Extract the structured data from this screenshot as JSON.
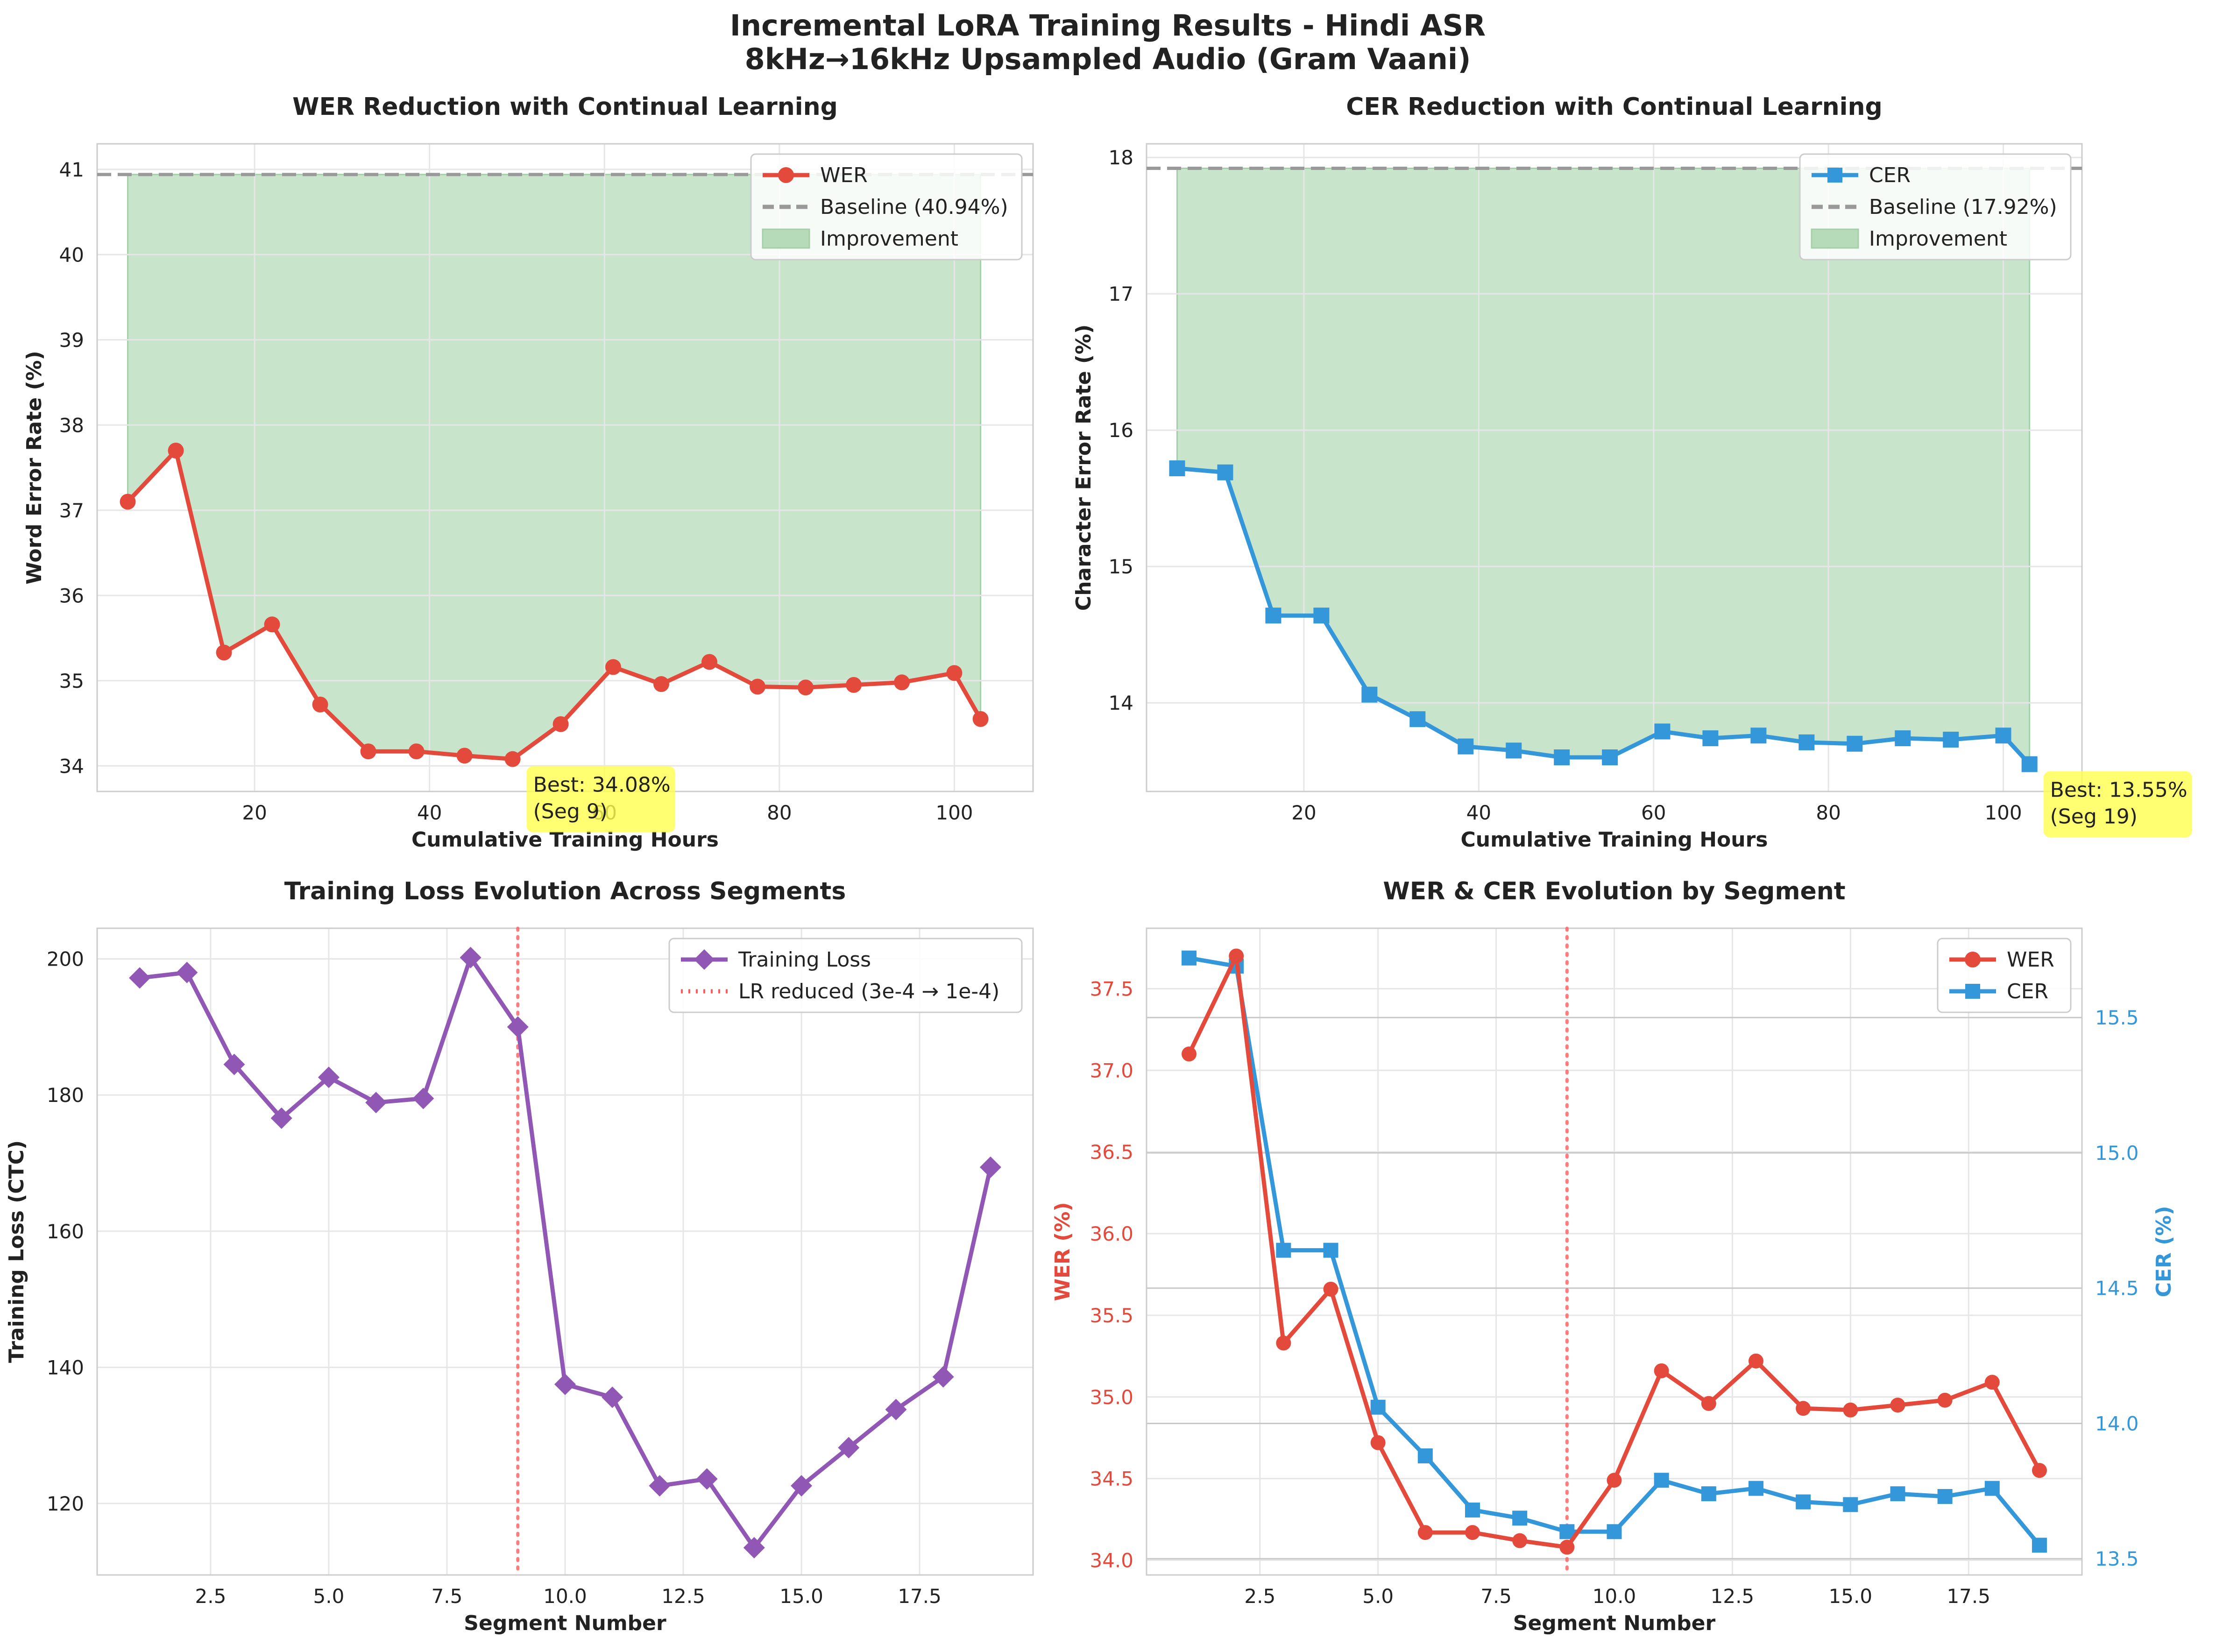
{
  "suptitle": {
    "line1": "Incremental LoRA Training Results - Hindi ASR",
    "line2": "8kHz→16kHz Upsampled Audio (Gram Vaani)"
  },
  "colors": {
    "wer": "#e34a3b",
    "cer": "#3497da",
    "loss": "#9157b5",
    "baseline": "#999999",
    "improvement": "#b5dbb8",
    "lr_line": "#ff5c5c",
    "annotation": "#ffff4d"
  },
  "chart_data": [
    {
      "id": "wer",
      "type": "line",
      "title": "WER Reduction with Continual Learning",
      "xlabel": "Cumulative Training Hours",
      "ylabel": "Word Error Rate (%)",
      "xlim": [
        2,
        109
      ],
      "ylim": [
        33.7,
        41.3
      ],
      "xticks": [
        20,
        40,
        60,
        80,
        100
      ],
      "yticks": [
        34,
        35,
        36,
        37,
        38,
        39,
        40,
        41
      ],
      "x": [
        5.5,
        11,
        16.5,
        22,
        27.5,
        33,
        38.5,
        44,
        49.5,
        55,
        61,
        66.5,
        72,
        77.5,
        83,
        88.5,
        94,
        100,
        103
      ],
      "series": [
        {
          "name": "WER",
          "values": [
            37.1,
            37.7,
            35.33,
            35.66,
            34.72,
            34.17,
            34.17,
            34.12,
            34.08,
            34.49,
            35.16,
            34.96,
            35.22,
            34.93,
            34.92,
            34.95,
            34.98,
            35.09,
            34.55
          ]
        }
      ],
      "baseline": {
        "label": "Baseline (40.94%)",
        "value": 40.94
      },
      "improvement_label": "Improvement",
      "annotation": {
        "line1": "Best: 34.08%",
        "line2": "(Seg 9)",
        "x": 49.5,
        "y": 34.08
      },
      "legend": "top-right"
    },
    {
      "id": "cer",
      "type": "line",
      "title": "CER Reduction with Continual Learning",
      "xlabel": "Cumulative Training Hours",
      "ylabel": "Character Error Rate (%)",
      "xlim": [
        2,
        109
      ],
      "ylim": [
        13.35,
        18.1
      ],
      "xticks": [
        20,
        40,
        60,
        80,
        100
      ],
      "yticks": [
        14,
        15,
        16,
        17,
        18
      ],
      "x": [
        5.5,
        11,
        16.5,
        22,
        27.5,
        33,
        38.5,
        44,
        49.5,
        55,
        61,
        66.5,
        72,
        77.5,
        83,
        88.5,
        94,
        100,
        103
      ],
      "series": [
        {
          "name": "CER",
          "values": [
            15.72,
            15.69,
            14.64,
            14.64,
            14.06,
            13.88,
            13.68,
            13.65,
            13.6,
            13.6,
            13.79,
            13.74,
            13.76,
            13.71,
            13.7,
            13.74,
            13.73,
            13.76,
            13.55
          ]
        }
      ],
      "baseline": {
        "label": "Baseline (17.92%)",
        "value": 17.92
      },
      "improvement_label": "Improvement",
      "annotation": {
        "line1": "Best: 13.55%",
        "line2": "(Seg 19)",
        "x": 103,
        "y": 13.55
      },
      "legend": "top-right"
    },
    {
      "id": "loss",
      "type": "line",
      "title": "Training Loss Evolution Across Segments",
      "xlabel": "Segment Number",
      "ylabel": "Training Loss (CTC)",
      "xlim": [
        0.1,
        19.9
      ],
      "ylim": [
        109.5,
        204.5
      ],
      "xticks": [
        2.5,
        5.0,
        7.5,
        10.0,
        12.5,
        15.0,
        17.5
      ],
      "xtick_labels": [
        "2.5",
        "5.0",
        "7.5",
        "10.0",
        "12.5",
        "15.0",
        "17.5"
      ],
      "yticks": [
        120,
        140,
        160,
        180,
        200
      ],
      "x": [
        1,
        2,
        3,
        4,
        5,
        6,
        7,
        8,
        9,
        10,
        11,
        12,
        13,
        14,
        15,
        16,
        17,
        18,
        19
      ],
      "series": [
        {
          "name": "Training Loss",
          "values": [
            197.2,
            198.0,
            184.5,
            176.6,
            182.6,
            178.9,
            179.5,
            200.2,
            190.0,
            137.5,
            135.6,
            122.6,
            123.6,
            113.5,
            122.6,
            128.2,
            133.8,
            138.6,
            169.4
          ]
        }
      ],
      "vline": {
        "x": 9,
        "label": "LR reduced (3e-4 → 1e-4)"
      },
      "legend": "top-right"
    },
    {
      "id": "dual",
      "type": "line",
      "title": "WER & CER Evolution by Segment",
      "xlabel": "Segment Number",
      "ylabel": "WER (%)",
      "ylabel_right": "CER (%)",
      "xlim": [
        0.1,
        19.9
      ],
      "ylim": [
        33.91,
        37.87
      ],
      "ylim_right": [
        13.44,
        15.83
      ],
      "xticks": [
        2.5,
        5.0,
        7.5,
        10.0,
        12.5,
        15.0,
        17.5
      ],
      "xtick_labels": [
        "2.5",
        "5.0",
        "7.5",
        "10.0",
        "12.5",
        "15.0",
        "17.5"
      ],
      "yticks": [
        34.0,
        34.5,
        35.0,
        35.5,
        36.0,
        36.5,
        37.0,
        37.5
      ],
      "ytick_labels": [
        "34.0",
        "34.5",
        "35.0",
        "35.5",
        "36.0",
        "36.5",
        "37.0",
        "37.5"
      ],
      "yticks_right": [
        13.5,
        14.0,
        14.5,
        15.0,
        15.5
      ],
      "ytick_labels_right": [
        "13.5",
        "14.0",
        "14.5",
        "15.0",
        "15.5"
      ],
      "x": [
        1,
        2,
        3,
        4,
        5,
        6,
        7,
        8,
        9,
        10,
        11,
        12,
        13,
        14,
        15,
        16,
        17,
        18,
        19
      ],
      "series": [
        {
          "name": "WER",
          "axis": "left",
          "values": [
            37.1,
            37.7,
            35.33,
            35.66,
            34.72,
            34.17,
            34.17,
            34.12,
            34.08,
            34.49,
            35.16,
            34.96,
            35.22,
            34.93,
            34.92,
            34.95,
            34.98,
            35.09,
            34.55
          ]
        },
        {
          "name": "CER",
          "axis": "right",
          "values": [
            15.72,
            15.69,
            14.64,
            14.64,
            14.06,
            13.88,
            13.68,
            13.65,
            13.6,
            13.6,
            13.79,
            13.74,
            13.76,
            13.71,
            13.7,
            13.74,
            13.73,
            13.76,
            13.55
          ]
        }
      ],
      "vline": {
        "x": 9
      },
      "legend": "top-right"
    }
  ]
}
